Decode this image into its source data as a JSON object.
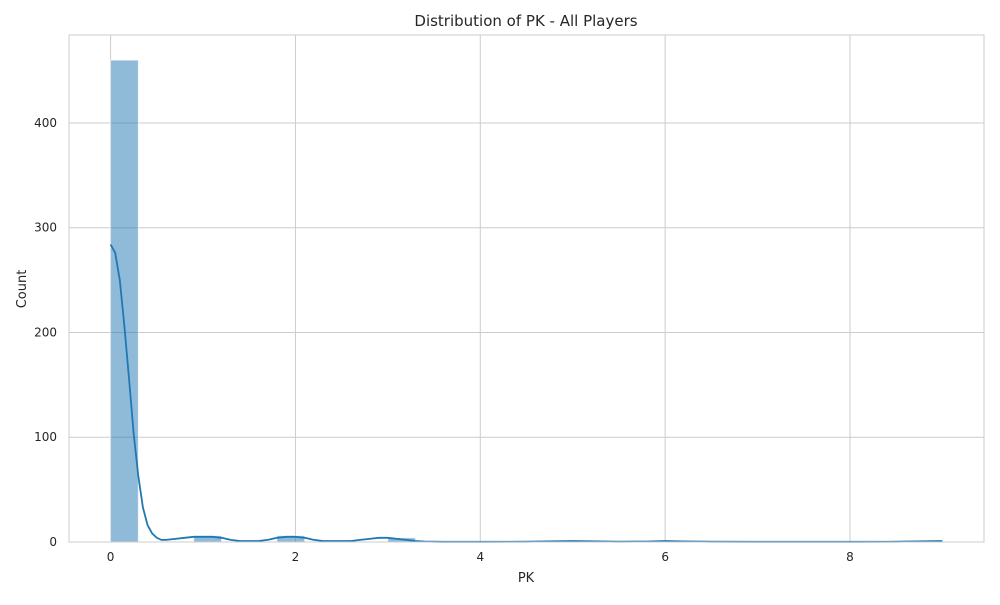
{
  "chart_data": {
    "type": "histogram",
    "title": "Distribution of PK - All Players",
    "xlabel": "PK",
    "ylabel": "Count",
    "xlim": [
      -0.45,
      9.45
    ],
    "ylim": [
      0,
      484
    ],
    "xticks": [
      0,
      2,
      4,
      6,
      8
    ],
    "yticks": [
      0,
      100,
      200,
      300,
      400
    ],
    "grid": true,
    "bar_color": "#1f77b4",
    "kde_color": "#1f77b4",
    "bins": [
      {
        "x0": 0.0,
        "x1": 0.3,
        "count": 460
      },
      {
        "x0": 0.3,
        "x1": 0.6,
        "count": 0
      },
      {
        "x0": 0.6,
        "x1": 0.9,
        "count": 0
      },
      {
        "x0": 0.9,
        "x1": 1.2,
        "count": 6
      },
      {
        "x0": 1.2,
        "x1": 1.5,
        "count": 0
      },
      {
        "x0": 1.5,
        "x1": 1.8,
        "count": 0
      },
      {
        "x0": 1.8,
        "x1": 2.1,
        "count": 6
      },
      {
        "x0": 2.1,
        "x1": 2.4,
        "count": 0
      },
      {
        "x0": 2.4,
        "x1": 2.7,
        "count": 0
      },
      {
        "x0": 2.7,
        "x1": 3.0,
        "count": 0
      },
      {
        "x0": 3.0,
        "x1": 3.3,
        "count": 4
      },
      {
        "x0": 3.3,
        "x1": 3.6,
        "count": 0
      },
      {
        "x0": 3.6,
        "x1": 3.9,
        "count": 0
      },
      {
        "x0": 3.9,
        "x1": 4.2,
        "count": 0
      },
      {
        "x0": 4.2,
        "x1": 4.5,
        "count": 0
      },
      {
        "x0": 4.5,
        "x1": 4.8,
        "count": 0
      },
      {
        "x0": 4.8,
        "x1": 5.1,
        "count": 1
      },
      {
        "x0": 5.1,
        "x1": 5.4,
        "count": 0
      },
      {
        "x0": 5.4,
        "x1": 5.7,
        "count": 0
      },
      {
        "x0": 5.7,
        "x1": 6.0,
        "count": 0
      },
      {
        "x0": 6.0,
        "x1": 6.3,
        "count": 1
      },
      {
        "x0": 6.3,
        "x1": 6.6,
        "count": 0
      },
      {
        "x0": 6.6,
        "x1": 6.9,
        "count": 0
      },
      {
        "x0": 6.9,
        "x1": 7.2,
        "count": 0
      },
      {
        "x0": 7.2,
        "x1": 7.5,
        "count": 0
      },
      {
        "x0": 7.5,
        "x1": 7.8,
        "count": 0
      },
      {
        "x0": 7.8,
        "x1": 8.1,
        "count": 0
      },
      {
        "x0": 8.1,
        "x1": 8.4,
        "count": 0
      },
      {
        "x0": 8.4,
        "x1": 8.7,
        "count": 0
      },
      {
        "x0": 8.7,
        "x1": 9.0,
        "count": 1
      }
    ],
    "kde": {
      "x": [
        0,
        0.05,
        0.1,
        0.15,
        0.2,
        0.25,
        0.3,
        0.35,
        0.4,
        0.45,
        0.5,
        0.55,
        0.6,
        0.7,
        0.8,
        0.9,
        1.0,
        1.1,
        1.2,
        1.3,
        1.4,
        1.5,
        1.6,
        1.7,
        1.8,
        1.9,
        2.0,
        2.1,
        2.2,
        2.3,
        2.4,
        2.5,
        2.6,
        2.7,
        2.8,
        2.9,
        3.0,
        3.1,
        3.2,
        3.3,
        3.4,
        3.5,
        3.6,
        3.8,
        4.0,
        4.5,
        4.8,
        5.0,
        5.2,
        5.5,
        5.8,
        6.0,
        6.2,
        6.5,
        7.0,
        7.5,
        8.0,
        8.5,
        8.8,
        9.0
      ],
      "y": [
        284,
        276,
        250,
        205,
        155,
        103,
        63,
        33,
        16,
        8,
        4,
        2,
        2,
        3,
        4,
        5,
        5,
        5,
        4,
        2,
        1,
        1,
        1,
        2,
        4,
        5,
        5,
        4,
        2,
        1,
        1,
        1,
        1,
        2,
        3,
        4,
        4,
        3,
        2,
        1,
        0.5,
        0.3,
        0.2,
        0.2,
        0.2,
        0.3,
        0.7,
        1,
        0.7,
        0.3,
        0.5,
        1,
        0.6,
        0.3,
        0.2,
        0.2,
        0.2,
        0.3,
        0.7,
        1
      ]
    }
  }
}
